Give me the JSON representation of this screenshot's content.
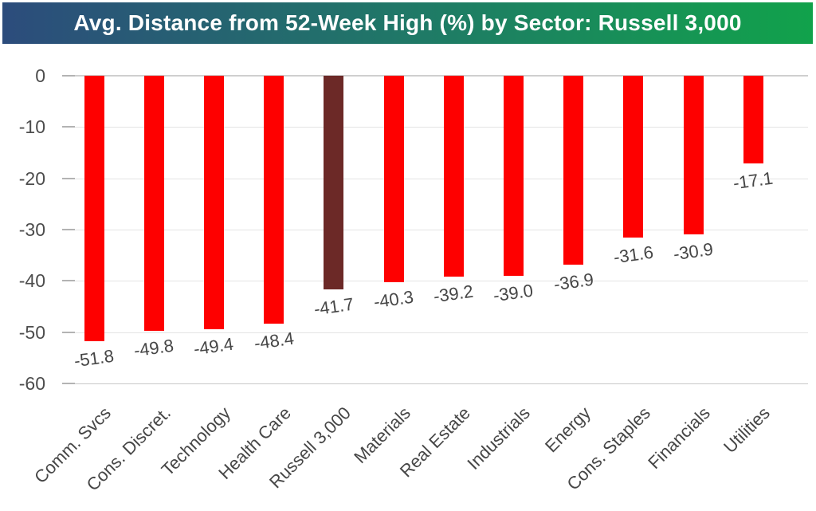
{
  "title": "Avg. Distance from 52-Week High (%) by Sector: Russell 3,000",
  "colors": {
    "banner_gradient_left": "#2C4C7C",
    "banner_gradient_mid": "#1F7A66",
    "banner_gradient_right": "#11A24B",
    "banner_text": "#FFFFFF",
    "bar_red": "#FE0000",
    "bar_highlight": "#6C2927",
    "axis_text": "#4D4D4D",
    "data_label_text": "#464646",
    "gridline": "#E3E3E3",
    "zero_line": "#CFCFCF"
  },
  "chart_data": {
    "type": "bar",
    "title": "Avg. Distance from 52-Week High (%) by Sector: Russell 3,000",
    "categories": [
      "Comm. Svcs",
      "Cons. Discret.",
      "Technology",
      "Health Care",
      "Russell 3,000",
      "Materials",
      "Real Estate",
      "Industrials",
      "Energy",
      "Cons. Staples",
      "Financials",
      "Utilities"
    ],
    "values": [
      -51.8,
      -49.8,
      -49.4,
      -48.4,
      -41.7,
      -40.3,
      -39.2,
      -39.0,
      -36.9,
      -31.6,
      -30.9,
      -17.1
    ],
    "value_labels": [
      "-51.8",
      "-49.8",
      "-49.4",
      "-48.4",
      "-41.7",
      "-40.3",
      "-39.2",
      "-39.0",
      "-36.9",
      "-31.6",
      "-30.9",
      "-17.1"
    ],
    "highlight_index": 4,
    "highlight_category": "Russell 3,000",
    "bar_color": "#FE0000",
    "highlight_bar_color": "#6C2927",
    "xlabel": "",
    "ylabel": "",
    "ylim": [
      -60,
      0
    ],
    "yticks": [
      0,
      -10,
      -20,
      -30,
      -40,
      -50,
      -60
    ],
    "grid": true,
    "legend": false,
    "x_tick_rotation_deg": 45,
    "data_label_rotation_deg": 8
  }
}
